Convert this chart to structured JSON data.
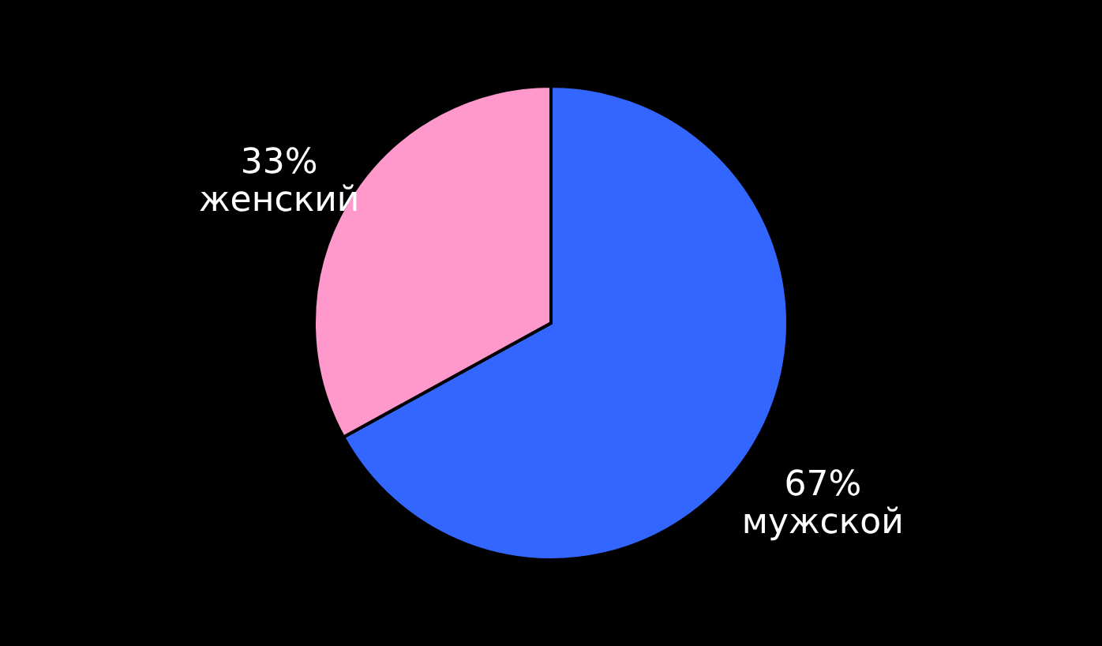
{
  "chart_data": {
    "type": "pie",
    "categories": [
      "мужской",
      "женский"
    ],
    "values": [
      67,
      33
    ],
    "colors": [
      "#3366ff",
      "#ff99cc"
    ],
    "value_labels": [
      "67%",
      "33%"
    ],
    "legend": false
  }
}
